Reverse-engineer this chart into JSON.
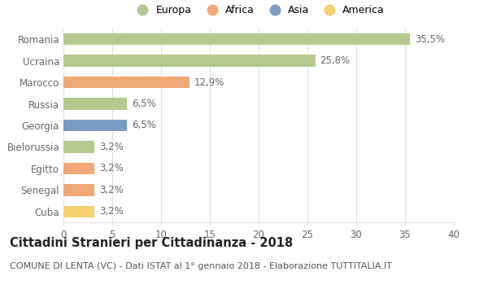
{
  "categories": [
    "Romania",
    "Ucraina",
    "Marocco",
    "Russia",
    "Georgia",
    "Bielorussia",
    "Egitto",
    "Senegal",
    "Cuba"
  ],
  "values": [
    35.5,
    25.8,
    12.9,
    6.5,
    6.5,
    3.2,
    3.2,
    3.2,
    3.2
  ],
  "labels": [
    "35,5%",
    "25,8%",
    "12,9%",
    "6,5%",
    "6,5%",
    "3,2%",
    "3,2%",
    "3,2%",
    "3,2%"
  ],
  "colors": [
    "#b5c98e",
    "#b5c98e",
    "#f0a878",
    "#b5c98e",
    "#7a9cc4",
    "#b5c98e",
    "#f0a878",
    "#f0a878",
    "#f5d070"
  ],
  "legend_labels": [
    "Europa",
    "Africa",
    "Asia",
    "America"
  ],
  "legend_colors": [
    "#b5c98e",
    "#f0a878",
    "#7a9cc4",
    "#f5d070"
  ],
  "title": "Cittadini Stranieri per Cittadinanza - 2018",
  "subtitle": "COMUNE DI LENTA (VC) - Dati ISTAT al 1° gennaio 2018 - Elaborazione TUTTITALIA.IT",
  "xlim": [
    0,
    40
  ],
  "xticks": [
    0,
    5,
    10,
    15,
    20,
    25,
    30,
    35,
    40
  ],
  "background_color": "#ffffff",
  "grid_color": "#e0e0e0",
  "bar_height": 0.55,
  "label_fontsize": 8.5,
  "title_fontsize": 10.5,
  "subtitle_fontsize": 8.0,
  "tick_label_color": "#666666"
}
